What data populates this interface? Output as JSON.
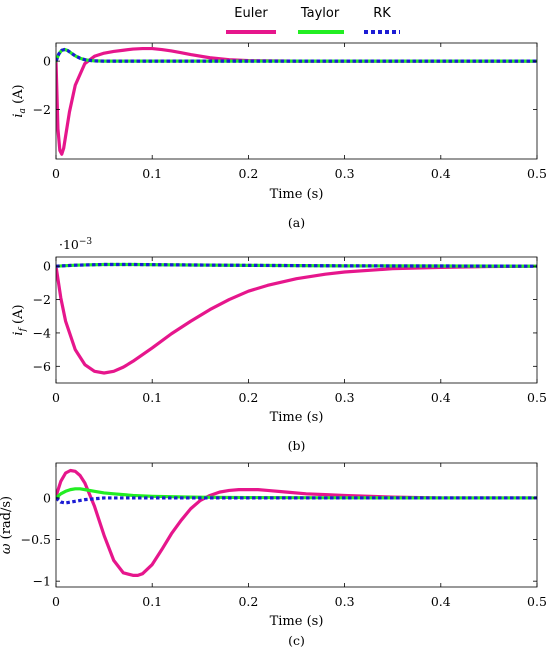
{
  "legend": {
    "entries": [
      {
        "name": "Euler",
        "color": "#e6168c",
        "style": "solid"
      },
      {
        "name": "Taylor",
        "color": "#22ee22",
        "style": "solid"
      },
      {
        "name": "RK",
        "color": "#1c1cd4",
        "style": "dotted"
      }
    ],
    "placement": "top-center"
  },
  "chart_data": [
    {
      "type": "line",
      "caption": "(a)",
      "xlabel": "Time (s)",
      "ylabel_main": "i",
      "ylabel_sub": "a",
      "ylabel_unit": " (A)",
      "xlim": [
        0,
        0.5
      ],
      "ylim": [
        -4.05,
        0.75
      ],
      "xticks": [
        0,
        0.1,
        0.2,
        0.3,
        0.4,
        0.5
      ],
      "xtick_labels": [
        "0",
        "0.1",
        "0.2",
        "0.3",
        "0.4",
        "0.5"
      ],
      "yticks": [
        -2,
        0
      ],
      "ytick_labels": [
        "−2",
        "0"
      ],
      "grid": false,
      "series": [
        {
          "name": "Euler",
          "x": [
            0,
            0.002,
            0.004,
            0.006,
            0.008,
            0.01,
            0.014,
            0.02,
            0.03,
            0.04,
            0.05,
            0.06,
            0.07,
            0.08,
            0.09,
            0.1,
            0.11,
            0.12,
            0.13,
            0.14,
            0.16,
            0.18,
            0.2,
            0.25,
            0.3,
            0.4,
            0.5
          ],
          "y": [
            0,
            -2.8,
            -3.7,
            -3.85,
            -3.6,
            -3.1,
            -2.1,
            -1.0,
            -0.1,
            0.2,
            0.33,
            0.4,
            0.45,
            0.5,
            0.52,
            0.52,
            0.48,
            0.42,
            0.35,
            0.27,
            0.14,
            0.06,
            0.02,
            0.0,
            0.0,
            0.0,
            0.0
          ]
        },
        {
          "name": "Taylor",
          "x": [
            0,
            0.003,
            0.006,
            0.009,
            0.012,
            0.016,
            0.02,
            0.025,
            0.03,
            0.035,
            0.04,
            0.05,
            0.06,
            0.1,
            0.5
          ],
          "y": [
            0,
            0.3,
            0.45,
            0.48,
            0.44,
            0.33,
            0.22,
            0.12,
            0.06,
            0.03,
            0.01,
            0.0,
            0.0,
            0.0,
            0.0
          ]
        },
        {
          "name": "RK",
          "x": [
            0,
            0.003,
            0.006,
            0.009,
            0.012,
            0.016,
            0.02,
            0.025,
            0.03,
            0.035,
            0.04,
            0.05,
            0.06,
            0.1,
            0.5
          ],
          "y": [
            0,
            0.3,
            0.45,
            0.48,
            0.44,
            0.33,
            0.22,
            0.12,
            0.06,
            0.03,
            0.01,
            0.0,
            0.0,
            0.0,
            0.0
          ]
        }
      ]
    },
    {
      "type": "line",
      "caption": "(b)",
      "xlabel": "Time (s)",
      "ylabel_main": "i",
      "ylabel_sub": "f",
      "ylabel_unit": " (A)",
      "scale_label": "·10",
      "scale_exp": "−3",
      "xlim": [
        0,
        0.5
      ],
      "ylim": [
        -7.0,
        0.55
      ],
      "xticks": [
        0,
        0.1,
        0.2,
        0.3,
        0.4,
        0.5
      ],
      "xtick_labels": [
        "0",
        "0.1",
        "0.2",
        "0.3",
        "0.4",
        "0.5"
      ],
      "yticks": [
        -6,
        -4,
        -2,
        0
      ],
      "ytick_labels": [
        "−6",
        "−4",
        "−2",
        "0"
      ],
      "grid": false,
      "series": [
        {
          "name": "Euler",
          "x": [
            0,
            0.005,
            0.01,
            0.02,
            0.03,
            0.04,
            0.05,
            0.06,
            0.07,
            0.08,
            0.1,
            0.12,
            0.14,
            0.16,
            0.18,
            0.2,
            0.22,
            0.25,
            0.28,
            0.3,
            0.35,
            0.4,
            0.45,
            0.5
          ],
          "y": [
            0,
            -1.9,
            -3.3,
            -5.0,
            -5.9,
            -6.3,
            -6.4,
            -6.3,
            -6.05,
            -5.7,
            -4.9,
            -4.05,
            -3.3,
            -2.6,
            -2.0,
            -1.5,
            -1.15,
            -0.75,
            -0.48,
            -0.35,
            -0.15,
            -0.07,
            -0.02,
            0.0
          ]
        },
        {
          "name": "Taylor",
          "x": [
            0,
            0.02,
            0.05,
            0.08,
            0.12,
            0.2,
            0.3,
            0.5
          ],
          "y": [
            0,
            0.06,
            0.1,
            0.1,
            0.08,
            0.05,
            0.02,
            0.0
          ]
        },
        {
          "name": "RK",
          "x": [
            0,
            0.02,
            0.05,
            0.08,
            0.12,
            0.2,
            0.3,
            0.5
          ],
          "y": [
            0,
            0.06,
            0.1,
            0.1,
            0.08,
            0.05,
            0.02,
            0.0
          ]
        }
      ]
    },
    {
      "type": "line",
      "caption": "(c)",
      "xlabel": "Time (s)",
      "ylabel_main": "ω",
      "ylabel_sub": "",
      "ylabel_unit": " (rad/s)",
      "xlim": [
        0,
        0.5
      ],
      "ylim": [
        -1.07,
        0.42
      ],
      "xticks": [
        0,
        0.1,
        0.2,
        0.3,
        0.4,
        0.5
      ],
      "xtick_labels": [
        "0",
        "0.1",
        "0.2",
        "0.3",
        "0.4",
        "0.5"
      ],
      "yticks": [
        -1,
        -0.5,
        0
      ],
      "ytick_labels": [
        "−1",
        "−0.5",
        "0"
      ],
      "grid": false,
      "series": [
        {
          "name": "Euler",
          "x": [
            0,
            0.005,
            0.01,
            0.015,
            0.02,
            0.025,
            0.03,
            0.04,
            0.05,
            0.06,
            0.07,
            0.08,
            0.085,
            0.09,
            0.1,
            0.11,
            0.12,
            0.13,
            0.14,
            0.15,
            0.16,
            0.17,
            0.18,
            0.19,
            0.2,
            0.21,
            0.22,
            0.24,
            0.26,
            0.28,
            0.3,
            0.35,
            0.4,
            0.45,
            0.5
          ],
          "y": [
            0.02,
            0.2,
            0.3,
            0.33,
            0.32,
            0.27,
            0.18,
            -0.1,
            -0.45,
            -0.75,
            -0.9,
            -0.93,
            -0.93,
            -0.91,
            -0.8,
            -0.62,
            -0.43,
            -0.27,
            -0.13,
            -0.03,
            0.03,
            0.07,
            0.09,
            0.1,
            0.1,
            0.1,
            0.09,
            0.07,
            0.05,
            0.04,
            0.03,
            0.01,
            0.0,
            0.0,
            0.0
          ]
        },
        {
          "name": "Taylor",
          "x": [
            0,
            0.005,
            0.01,
            0.015,
            0.02,
            0.025,
            0.03,
            0.04,
            0.05,
            0.06,
            0.08,
            0.1,
            0.12,
            0.14,
            0.16,
            0.2,
            0.25,
            0.3,
            0.4,
            0.5
          ],
          "y": [
            0,
            0.05,
            0.08,
            0.1,
            0.11,
            0.11,
            0.1,
            0.08,
            0.06,
            0.05,
            0.03,
            0.02,
            0.015,
            0.01,
            0.008,
            0.005,
            0.003,
            0.002,
            0.0,
            0.0
          ]
        },
        {
          "name": "RK",
          "x": [
            0,
            0.005,
            0.01,
            0.015,
            0.02,
            0.03,
            0.04,
            0.05,
            0.06,
            0.08,
            0.1,
            0.12,
            0.15,
            0.2,
            0.3,
            0.5
          ],
          "y": [
            0,
            -0.05,
            -0.06,
            -0.05,
            -0.04,
            -0.02,
            -0.01,
            0.0,
            0.0,
            0.0,
            0.0,
            0.0,
            0.0,
            0.0,
            0.0,
            0.0
          ]
        }
      ]
    }
  ]
}
